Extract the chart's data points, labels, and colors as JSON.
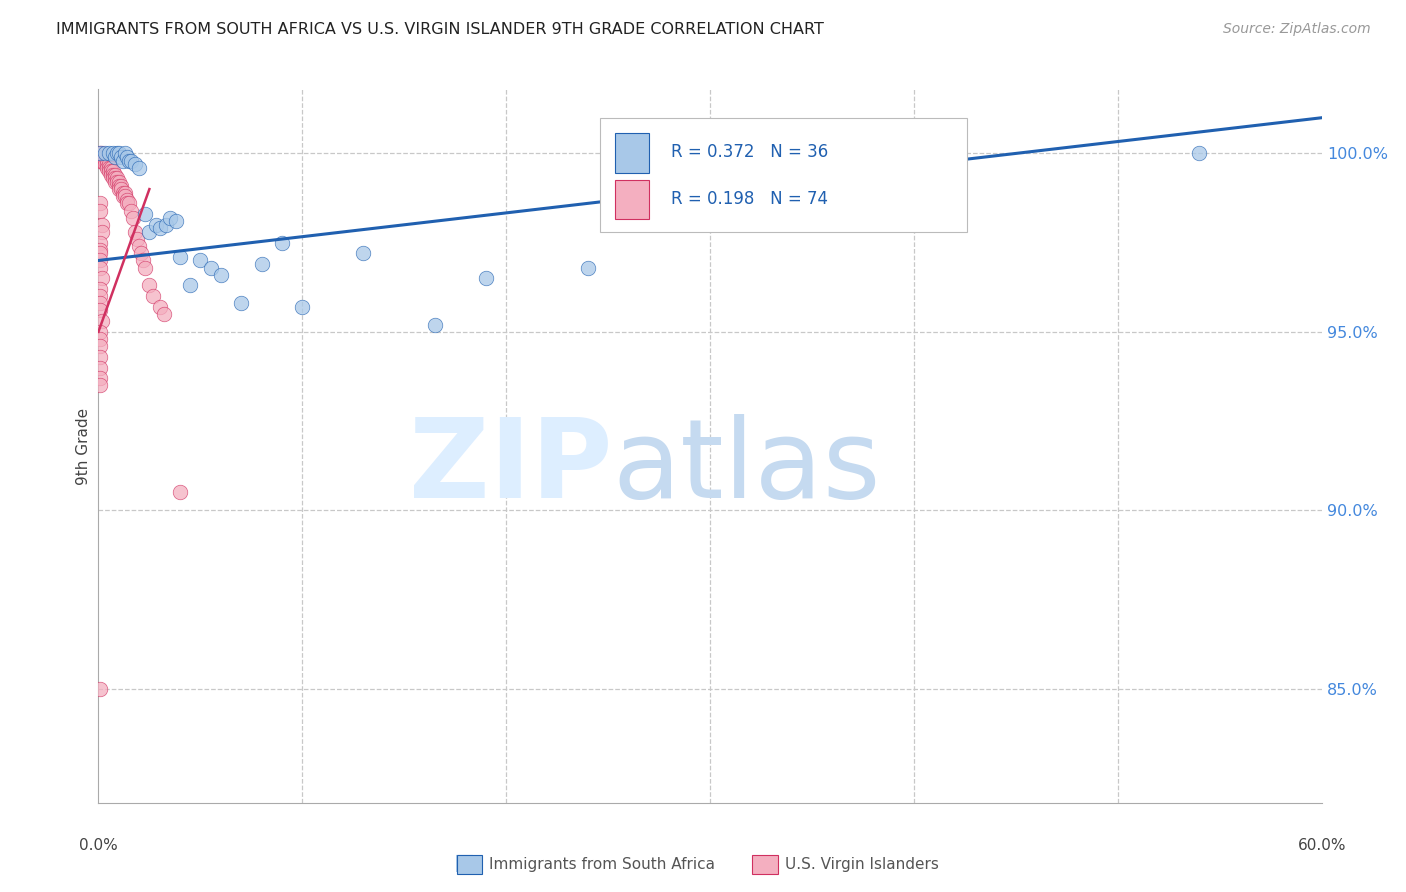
{
  "title": "IMMIGRANTS FROM SOUTH AFRICA VS U.S. VIRGIN ISLANDER 9TH GRADE CORRELATION CHART",
  "source": "Source: ZipAtlas.com",
  "ylabel": "9th Grade",
  "yticks": [
    0.85,
    0.9,
    0.95,
    1.0
  ],
  "ytick_labels": [
    "85.0%",
    "90.0%",
    "95.0%",
    "100.0%"
  ],
  "xlim": [
    0.0,
    0.6
  ],
  "ylim": [
    0.818,
    1.018
  ],
  "legend_label1": "Immigrants from South Africa",
  "legend_label2": "U.S. Virgin Islanders",
  "R1": 0.372,
  "N1": 36,
  "R2": 0.198,
  "N2": 74,
  "blue_color": "#a8c8e8",
  "pink_color": "#f4afc0",
  "trendline_blue_color": "#2060b0",
  "trendline_pink_color": "#d03060",
  "blue_trend_x": [
    0.0,
    0.6
  ],
  "blue_trend_y": [
    0.97,
    1.01
  ],
  "pink_trend_x": [
    0.0,
    0.025
  ],
  "pink_trend_y": [
    0.95,
    0.99
  ],
  "blue_x": [
    0.001,
    0.003,
    0.005,
    0.007,
    0.008,
    0.009,
    0.01,
    0.011,
    0.012,
    0.013,
    0.014,
    0.015,
    0.016,
    0.018,
    0.02,
    0.023,
    0.025,
    0.028,
    0.03,
    0.033,
    0.035,
    0.038,
    0.04,
    0.045,
    0.05,
    0.055,
    0.06,
    0.07,
    0.08,
    0.09,
    0.1,
    0.13,
    0.165,
    0.19,
    0.24,
    0.54
  ],
  "blue_y": [
    1.0,
    1.0,
    1.0,
    1.0,
    0.999,
    1.0,
    1.0,
    0.999,
    0.998,
    1.0,
    0.999,
    0.998,
    0.998,
    0.997,
    0.996,
    0.983,
    0.978,
    0.98,
    0.979,
    0.98,
    0.982,
    0.981,
    0.971,
    0.963,
    0.97,
    0.968,
    0.966,
    0.958,
    0.969,
    0.975,
    0.957,
    0.972,
    0.952,
    0.965,
    0.968,
    1.0
  ],
  "pink_x": [
    0.001,
    0.001,
    0.001,
    0.002,
    0.002,
    0.002,
    0.003,
    0.003,
    0.003,
    0.004,
    0.004,
    0.004,
    0.005,
    0.005,
    0.005,
    0.006,
    0.006,
    0.006,
    0.007,
    0.007,
    0.007,
    0.008,
    0.008,
    0.008,
    0.009,
    0.009,
    0.01,
    0.01,
    0.01,
    0.011,
    0.011,
    0.012,
    0.012,
    0.013,
    0.013,
    0.014,
    0.014,
    0.015,
    0.016,
    0.017,
    0.018,
    0.019,
    0.02,
    0.021,
    0.022,
    0.023,
    0.025,
    0.027,
    0.03,
    0.032,
    0.001,
    0.001,
    0.002,
    0.002,
    0.001,
    0.001,
    0.001,
    0.001,
    0.001,
    0.002,
    0.001,
    0.001,
    0.001,
    0.001,
    0.002,
    0.001,
    0.001,
    0.001,
    0.001,
    0.001,
    0.001,
    0.001,
    0.04,
    0.001
  ],
  "pink_y": [
    1.0,
    0.999,
    0.998,
    1.0,
    0.999,
    0.998,
    0.999,
    0.998,
    0.997,
    0.998,
    0.997,
    0.996,
    0.997,
    0.996,
    0.995,
    0.996,
    0.995,
    0.994,
    0.995,
    0.994,
    0.993,
    0.994,
    0.993,
    0.992,
    0.993,
    0.992,
    0.992,
    0.991,
    0.99,
    0.991,
    0.99,
    0.989,
    0.988,
    0.989,
    0.988,
    0.987,
    0.986,
    0.986,
    0.984,
    0.982,
    0.978,
    0.976,
    0.974,
    0.972,
    0.97,
    0.968,
    0.963,
    0.96,
    0.957,
    0.955,
    0.986,
    0.984,
    0.98,
    0.978,
    0.975,
    0.973,
    0.972,
    0.97,
    0.968,
    0.965,
    0.962,
    0.96,
    0.958,
    0.956,
    0.953,
    0.95,
    0.948,
    0.946,
    0.943,
    0.94,
    0.937,
    0.935,
    0.905,
    0.85
  ]
}
